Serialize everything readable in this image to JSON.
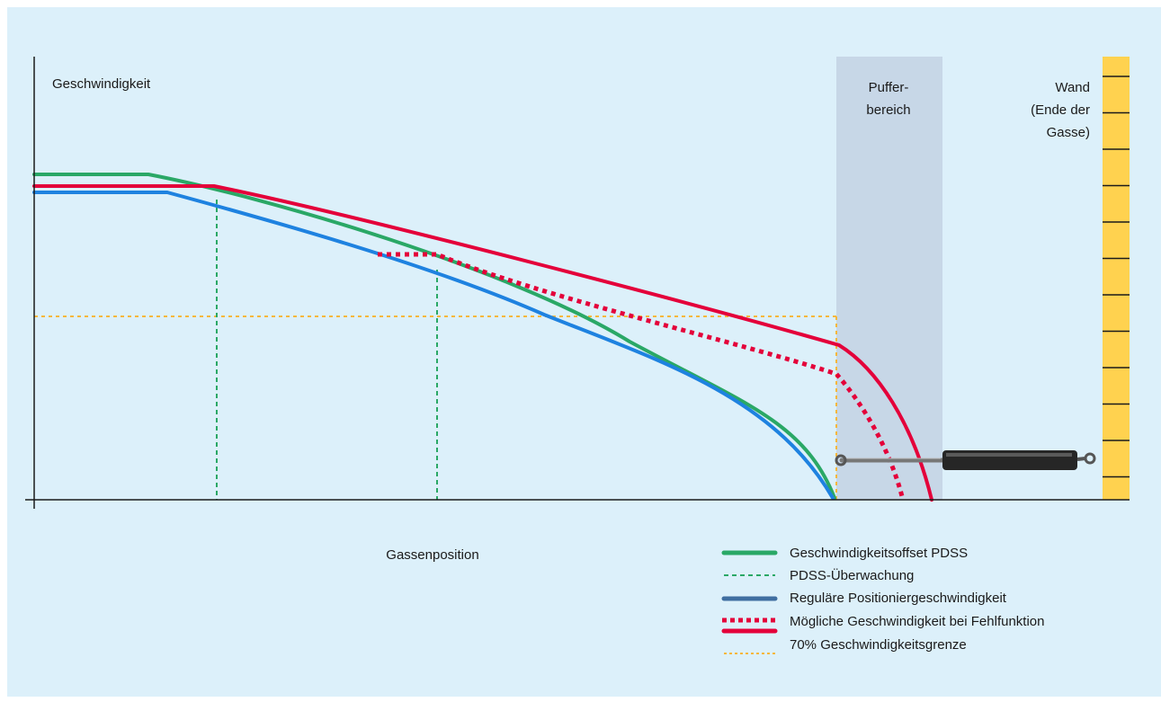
{
  "colors": {
    "background": "#dcf0fa",
    "buffer_zone": "#c7d7e7",
    "wall": "#ffd24f",
    "axis": "#1a1a1a",
    "green": "#2aa866",
    "blue": "#1e82e0",
    "red": "#e4003a",
    "orange": "#f6b73c"
  },
  "labels": {
    "y_axis": "Geschwindigkeit",
    "x_axis": "Gassenposition",
    "buffer_zone": [
      "Puffer-",
      "bereich"
    ],
    "wall": [
      "Wand",
      "(Ende der",
      "Gasse)"
    ]
  },
  "legend": [
    {
      "key": "green",
      "style": "solid",
      "label": "Geschwindigkeitsoffset PDSS"
    },
    {
      "key": "green",
      "style": "dashed",
      "label": "PDSS-Überwachung"
    },
    {
      "key": "blue",
      "style": "solid",
      "label": "Reguläre Positioniergeschwindigkeit"
    },
    {
      "key": "red",
      "style": "dotted-thick",
      "label": "Mögliche Geschwindigkeit bei Fehlfunktion"
    },
    {
      "key": "orange",
      "style": "dotted",
      "label": "70% Geschwindigkeitsgrenze"
    }
  ],
  "icons": {
    "buffer": "gas-spring-buffer-icon"
  }
}
